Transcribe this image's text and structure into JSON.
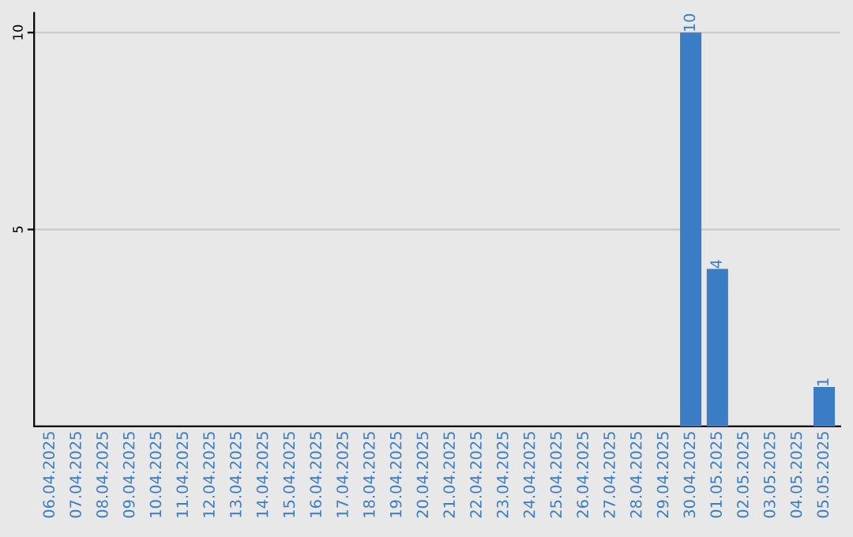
{
  "chart_data": {
    "type": "bar",
    "categories": [
      "06.04.2025",
      "07.04.2025",
      "08.04.2025",
      "09.04.2025",
      "10.04.2025",
      "11.04.2025",
      "12.04.2025",
      "13.04.2025",
      "14.04.2025",
      "15.04.2025",
      "16.04.2025",
      "17.04.2025",
      "18.04.2025",
      "19.04.2025",
      "20.04.2025",
      "21.04.2025",
      "22.04.2025",
      "23.04.2025",
      "24.04.2025",
      "25.04.2025",
      "26.04.2025",
      "27.04.2025",
      "28.04.2025",
      "29.04.2025",
      "30.04.2025",
      "01.05.2025",
      "02.05.2025",
      "03.05.2025",
      "04.05.2025",
      "05.05.2025"
    ],
    "values": [
      0,
      0,
      0,
      0,
      0,
      0,
      0,
      0,
      0,
      0,
      0,
      0,
      0,
      0,
      0,
      0,
      0,
      0,
      0,
      0,
      0,
      0,
      0,
      0,
      10,
      4,
      0,
      0,
      0,
      1
    ],
    "value_labels": [
      null,
      null,
      null,
      null,
      null,
      null,
      null,
      null,
      null,
      null,
      null,
      null,
      null,
      null,
      null,
      null,
      null,
      null,
      null,
      null,
      null,
      null,
      null,
      null,
      "10",
      "4",
      null,
      null,
      null,
      "1"
    ],
    "color": "#3b7dc4",
    "ylim": [
      0,
      10.5
    ],
    "yticks": [
      5,
      10
    ],
    "grid": "y"
  }
}
